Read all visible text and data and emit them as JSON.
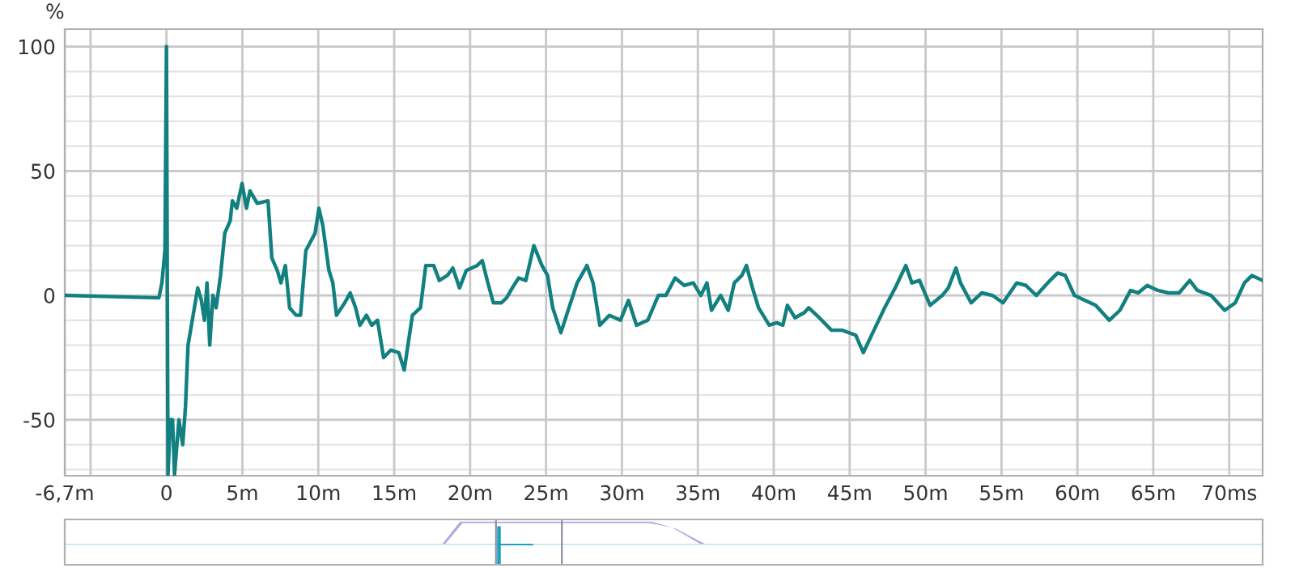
{
  "chart_data": {
    "type": "line",
    "ylabel": "%",
    "x": [
      -6.7,
      -0.5,
      -0.3,
      -0.1,
      0.0,
      0.1,
      0.25,
      0.4,
      0.53,
      0.82,
      1.07,
      1.25,
      1.42,
      1.7,
      2.06,
      2.3,
      2.5,
      2.67,
      2.85,
      3.06,
      3.27,
      3.56,
      3.84,
      4.2,
      4.34,
      4.63,
      4.98,
      5.27,
      5.5,
      5.98,
      6.69,
      6.94,
      7.3,
      7.54,
      7.83,
      8.11,
      8.54,
      8.83,
      9.18,
      9.79,
      10.04,
      10.3,
      10.7,
      10.96,
      11.2,
      11.74,
      12.1,
      12.46,
      12.74,
      13.17,
      13.52,
      13.9,
      14.3,
      14.77,
      15.3,
      15.66,
      16.2,
      16.73,
      17.08,
      17.6,
      17.97,
      18.5,
      18.86,
      19.3,
      19.75,
      20.46,
      20.8,
      21.17,
      21.53,
      22.06,
      22.4,
      22.78,
      23.2,
      23.67,
      24.2,
      24.73,
      25.1,
      25.44,
      25.98,
      26.51,
      27.05,
      27.7,
      28.1,
      28.54,
      29.18,
      29.9,
      30.43,
      30.96,
      31.7,
      32.4,
      32.9,
      33.5,
      34.1,
      34.7,
      35.2,
      35.6,
      35.9,
      36.5,
      37.0,
      37.4,
      37.9,
      38.2,
      38.6,
      39.0,
      39.7,
      40.2,
      40.6,
      40.9,
      41.4,
      42.0,
      42.3,
      43.0,
      43.8,
      44.5,
      45.4,
      45.9,
      46.6,
      47.3,
      48.0,
      48.7,
      49.1,
      49.6,
      50.3,
      51.1,
      51.5,
      52.0,
      52.3,
      53.0,
      53.7,
      54.4,
      55.1,
      56.0,
      56.6,
      57.3,
      58.2,
      58.7,
      59.2,
      59.8,
      60.5,
      61.2,
      62.1,
      62.8,
      63.5,
      64.0,
      64.6,
      65.3,
      66.0,
      66.7,
      67.4,
      67.9,
      68.8,
      69.7,
      70.4,
      71.0,
      71.5,
      72.2
    ],
    "series": [
      {
        "color": "#128080",
        "values": [
          0,
          -1,
          5,
          18,
          100,
          -72,
          -50,
          -50,
          -72,
          -50,
          -60,
          -45,
          -20,
          -10,
          3,
          -2,
          -10,
          5,
          -20,
          0,
          -5,
          8,
          25,
          30,
          38,
          35,
          45,
          35,
          42,
          37,
          38,
          15,
          10,
          5,
          12,
          -5,
          -8,
          -8,
          18,
          25,
          35,
          28,
          10,
          5,
          -8,
          -3,
          1,
          -5,
          -12,
          -8,
          -12,
          -10,
          -25,
          -22,
          -23,
          -30,
          -8,
          -5,
          12,
          12,
          6,
          8,
          11,
          3,
          10,
          12,
          14,
          5,
          -3,
          -3,
          -1,
          3,
          7,
          6,
          20,
          12,
          8,
          -5,
          -15,
          -5,
          5,
          12,
          5,
          -12,
          -8,
          -10,
          -2,
          -12,
          -10,
          0,
          0,
          7,
          4,
          5,
          0,
          5,
          -6,
          0,
          -6,
          5,
          8,
          12,
          3,
          -5,
          -12,
          -11,
          -12,
          -4,
          -9,
          -7,
          -5,
          -9,
          -14,
          -14,
          -16,
          -23,
          -14,
          -5,
          3,
          12,
          5,
          6,
          -4,
          0,
          3,
          11,
          5,
          -3,
          1,
          0,
          -3,
          5,
          4,
          0,
          6,
          9,
          8,
          0,
          -2,
          -4,
          -10,
          -6,
          2,
          1,
          4,
          2,
          1,
          1,
          6,
          2,
          0,
          -6,
          -3,
          5,
          8,
          6
        ]
      }
    ],
    "xlim": [
      -6.7,
      72.2
    ],
    "xticks": [
      {
        "value": -6.7,
        "label": "-6,7m"
      },
      {
        "value": -5,
        "label": null
      },
      0,
      {
        "value": 5,
        "label": "5m"
      },
      {
        "value": 10,
        "label": "10m"
      },
      {
        "value": 15,
        "label": "15m"
      },
      {
        "value": 20,
        "label": "20m"
      },
      {
        "value": 25,
        "label": "25m"
      },
      {
        "value": 30,
        "label": "30m"
      },
      {
        "value": 35,
        "label": "35m"
      },
      {
        "value": 40,
        "label": "40m"
      },
      {
        "value": 45,
        "label": "45m"
      },
      {
        "value": 50,
        "label": "50m"
      },
      {
        "value": 55,
        "label": "55m"
      },
      {
        "value": 60,
        "label": "60m"
      },
      {
        "value": 65,
        "label": "65m"
      },
      {
        "value": 70,
        "label": "70ms"
      }
    ],
    "ylim": [
      -72.5,
      107
    ],
    "yticks": [
      -50,
      0,
      50,
      100
    ],
    "grid": true,
    "line_style": "solid",
    "marker": "none"
  }
}
